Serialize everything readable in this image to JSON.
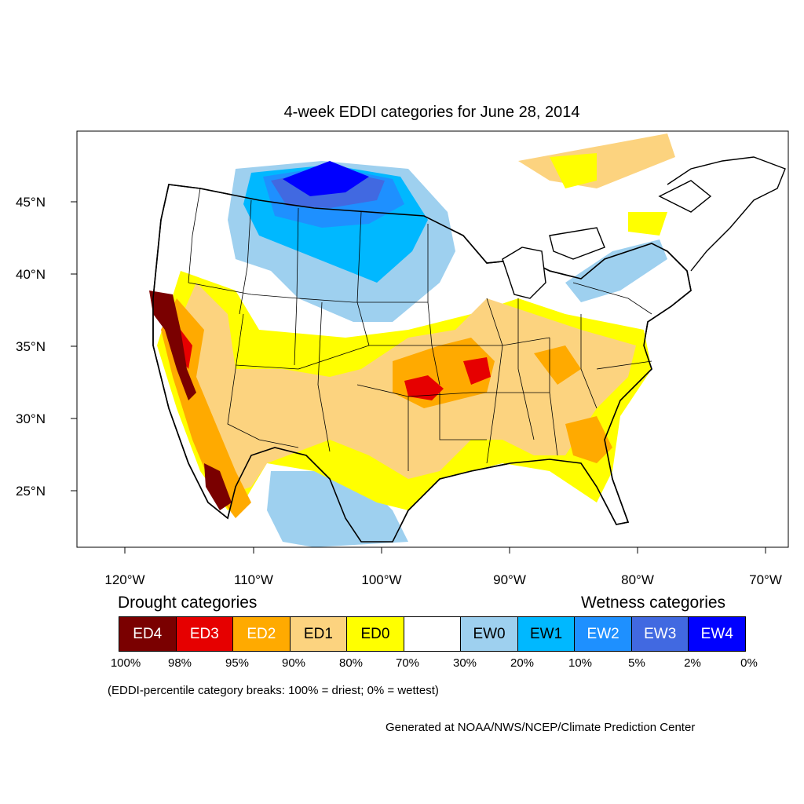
{
  "title": "4-week EDDI categories for June 28, 2014",
  "y_axis": {
    "ticks": [
      "45°N",
      "40°N",
      "35°N",
      "30°N",
      "25°N"
    ]
  },
  "x_axis": {
    "ticks": [
      "120°W",
      "110°W",
      "100°W",
      "90°W",
      "80°W",
      "70°W"
    ]
  },
  "legend": {
    "drought_heading": "Drought categories",
    "wetness_heading": "Wetness categories",
    "categories": [
      {
        "label": "ED4",
        "color": "#7a0000",
        "text_color": "#ffffff"
      },
      {
        "label": "ED3",
        "color": "#e60000",
        "text_color": "#ffffff"
      },
      {
        "label": "ED2",
        "color": "#ffaa00",
        "text_color": "#ffffff"
      },
      {
        "label": "ED1",
        "color": "#fcd37f",
        "text_color": "#000000"
      },
      {
        "label": "ED0",
        "color": "#ffff00",
        "text_color": "#000000"
      },
      {
        "label": "",
        "color": "#ffffff",
        "text_color": "#000000"
      },
      {
        "label": "EW0",
        "color": "#9ed0ef",
        "text_color": "#000000"
      },
      {
        "label": "EW1",
        "color": "#00b8ff",
        "text_color": "#000000"
      },
      {
        "label": "EW2",
        "color": "#1e90ff",
        "text_color": "#ffffff"
      },
      {
        "label": "EW3",
        "color": "#4169e1",
        "text_color": "#ffffff"
      },
      {
        "label": "EW4",
        "color": "#0000ff",
        "text_color": "#ffffff"
      }
    ],
    "breaks": [
      "100%",
      "98%",
      "95%",
      "90%",
      "80%",
      "70%",
      "30%",
      "20%",
      "10%",
      "5%",
      "2%",
      "0%"
    ],
    "note": "(EDDI-percentile category breaks: 100% = driest; 0% = wettest)"
  },
  "credit": "Generated at NOAA/NWS/NCEP/Climate Prediction Center"
}
